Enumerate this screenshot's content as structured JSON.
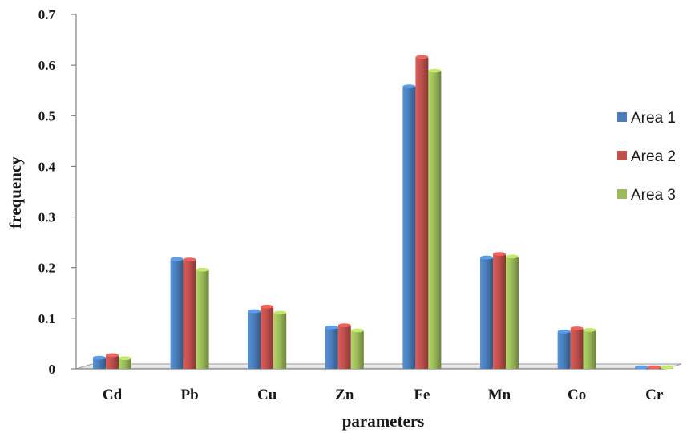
{
  "chart_data": {
    "type": "bar",
    "categories": [
      "Cd",
      "Pb",
      "Cu",
      "Zn",
      "Fe",
      "Mn",
      "Co",
      "Cr"
    ],
    "series": [
      {
        "name": "Area 1",
        "color": "#4a7ebb",
        "values": [
          0.022,
          0.217,
          0.114,
          0.082,
          0.558,
          0.22,
          0.074,
          0.003
        ]
      },
      {
        "name": "Area 2",
        "color": "#c0504d",
        "values": [
          0.027,
          0.216,
          0.123,
          0.086,
          0.616,
          0.227,
          0.08,
          0.003
        ]
      },
      {
        "name": "Area 3",
        "color": "#9bbb59",
        "values": [
          0.021,
          0.196,
          0.111,
          0.076,
          0.589,
          0.222,
          0.077,
          0.003
        ]
      }
    ],
    "xlabel": "parameters",
    "ylabel": "frequency",
    "ylim": [
      0,
      0.7
    ],
    "yticks": [
      "0",
      "0.1",
      "0.2",
      "0.3",
      "0.4",
      "0.5",
      "0.6",
      "0.7"
    ],
    "grid": false,
    "legend": "right"
  }
}
